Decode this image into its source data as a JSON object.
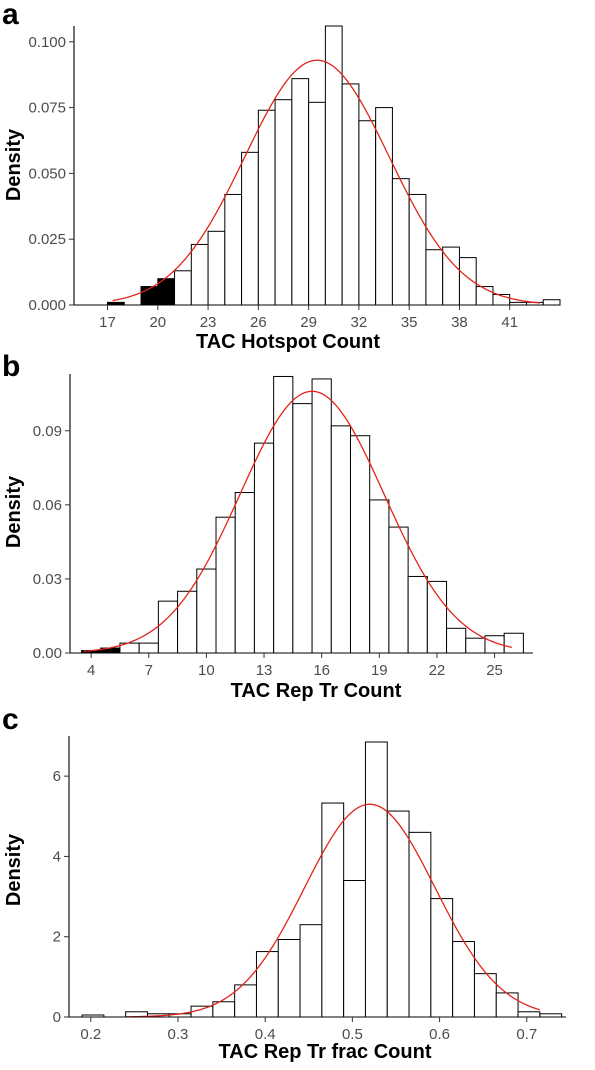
{
  "chart_data": [
    {
      "panel": "a",
      "type": "histogram",
      "xlabel": "TAC Hotspot Count",
      "ylabel": "Density",
      "xlim": [
        15,
        44
      ],
      "ylim": [
        0,
        0.106
      ],
      "xticks": [
        17,
        20,
        23,
        26,
        29,
        32,
        35,
        38,
        41
      ],
      "yticks": [
        "0.000",
        "0.025",
        "0.050",
        "0.075",
        "0.100"
      ],
      "ytick_values": [
        0,
        0.025,
        0.05,
        0.075,
        0.1
      ],
      "grid": false,
      "bins": [
        {
          "x0": 17,
          "x1": 18,
          "density": 0.001,
          "fill": "#000000"
        },
        {
          "x0": 18,
          "x1": 19,
          "density": 0.0,
          "fill": "#000000"
        },
        {
          "x0": 19,
          "x1": 20,
          "density": 0.007,
          "fill": "#000000"
        },
        {
          "x0": 20,
          "x1": 21,
          "density": 0.01,
          "fill": "#000000"
        },
        {
          "x0": 21,
          "x1": 22,
          "density": 0.013,
          "fill": "#ffffff"
        },
        {
          "x0": 22,
          "x1": 23,
          "density": 0.023,
          "fill": "#ffffff"
        },
        {
          "x0": 23,
          "x1": 24,
          "density": 0.028,
          "fill": "#ffffff"
        },
        {
          "x0": 24,
          "x1": 25,
          "density": 0.042,
          "fill": "#ffffff"
        },
        {
          "x0": 25,
          "x1": 26,
          "density": 0.058,
          "fill": "#ffffff"
        },
        {
          "x0": 26,
          "x1": 27,
          "density": 0.074,
          "fill": "#ffffff"
        },
        {
          "x0": 27,
          "x1": 28,
          "density": 0.078,
          "fill": "#ffffff"
        },
        {
          "x0": 28,
          "x1": 29,
          "density": 0.086,
          "fill": "#ffffff"
        },
        {
          "x0": 29,
          "x1": 30,
          "density": 0.077,
          "fill": "#ffffff"
        },
        {
          "x0": 30,
          "x1": 31,
          "density": 0.106,
          "fill": "#ffffff"
        },
        {
          "x0": 31,
          "x1": 32,
          "density": 0.084,
          "fill": "#ffffff"
        },
        {
          "x0": 32,
          "x1": 33,
          "density": 0.07,
          "fill": "#ffffff"
        },
        {
          "x0": 33,
          "x1": 34,
          "density": 0.075,
          "fill": "#ffffff"
        },
        {
          "x0": 34,
          "x1": 35,
          "density": 0.048,
          "fill": "#ffffff"
        },
        {
          "x0": 35,
          "x1": 36,
          "density": 0.042,
          "fill": "#ffffff"
        },
        {
          "x0": 36,
          "x1": 37,
          "density": 0.021,
          "fill": "#ffffff"
        },
        {
          "x0": 37,
          "x1": 38,
          "density": 0.022,
          "fill": "#ffffff"
        },
        {
          "x0": 38,
          "x1": 39,
          "density": 0.018,
          "fill": "#ffffff"
        },
        {
          "x0": 39,
          "x1": 40,
          "density": 0.007,
          "fill": "#ffffff"
        },
        {
          "x0": 40,
          "x1": 41,
          "density": 0.004,
          "fill": "#ffffff"
        },
        {
          "x0": 41,
          "x1": 42,
          "density": 0.001,
          "fill": "#ffffff"
        },
        {
          "x0": 42,
          "x1": 43,
          "density": 0.001,
          "fill": "#ffffff"
        },
        {
          "x0": 43,
          "x1": 44,
          "density": 0.002,
          "fill": "#ffffff"
        }
      ],
      "normal_fit": {
        "mean": 29.5,
        "sd": 4.3,
        "peak": 0.093,
        "x_range": [
          17.3,
          42.8
        ]
      },
      "curve_color": "#e3241b"
    },
    {
      "panel": "b",
      "type": "histogram",
      "xlabel": "TAC Rep Tr Count",
      "ylabel": "Density",
      "xlim": [
        2.9,
        27
      ],
      "ylim": [
        0,
        0.113
      ],
      "xticks": [
        4,
        7,
        10,
        13,
        16,
        19,
        22,
        25
      ],
      "yticks": [
        "0.00",
        "0.03",
        "0.06",
        "0.09"
      ],
      "ytick_values": [
        0,
        0.03,
        0.06,
        0.09
      ],
      "grid": false,
      "bins": [
        {
          "x0": 3.5,
          "x1": 4.5,
          "density": 0.001,
          "fill": "#000000"
        },
        {
          "x0": 4.5,
          "x1": 5.5,
          "density": 0.002,
          "fill": "#000000"
        },
        {
          "x0": 5.5,
          "x1": 6.5,
          "density": 0.004,
          "fill": "#ffffff"
        },
        {
          "x0": 6.5,
          "x1": 7.5,
          "density": 0.004,
          "fill": "#ffffff"
        },
        {
          "x0": 7.5,
          "x1": 8.5,
          "density": 0.021,
          "fill": "#ffffff"
        },
        {
          "x0": 8.5,
          "x1": 9.5,
          "density": 0.025,
          "fill": "#ffffff"
        },
        {
          "x0": 9.5,
          "x1": 10.5,
          "density": 0.034,
          "fill": "#ffffff"
        },
        {
          "x0": 10.5,
          "x1": 11.5,
          "density": 0.055,
          "fill": "#ffffff"
        },
        {
          "x0": 11.5,
          "x1": 12.5,
          "density": 0.065,
          "fill": "#ffffff"
        },
        {
          "x0": 12.5,
          "x1": 13.5,
          "density": 0.085,
          "fill": "#ffffff"
        },
        {
          "x0": 13.5,
          "x1": 14.5,
          "density": 0.112,
          "fill": "#ffffff"
        },
        {
          "x0": 14.5,
          "x1": 15.5,
          "density": 0.101,
          "fill": "#ffffff"
        },
        {
          "x0": 15.5,
          "x1": 16.5,
          "density": 0.111,
          "fill": "#ffffff"
        },
        {
          "x0": 16.5,
          "x1": 17.5,
          "density": 0.092,
          "fill": "#ffffff"
        },
        {
          "x0": 17.5,
          "x1": 18.5,
          "density": 0.088,
          "fill": "#ffffff"
        },
        {
          "x0": 18.5,
          "x1": 19.5,
          "density": 0.062,
          "fill": "#ffffff"
        },
        {
          "x0": 19.5,
          "x1": 20.5,
          "density": 0.051,
          "fill": "#ffffff"
        },
        {
          "x0": 20.5,
          "x1": 21.5,
          "density": 0.031,
          "fill": "#ffffff"
        },
        {
          "x0": 21.5,
          "x1": 22.5,
          "density": 0.029,
          "fill": "#ffffff"
        },
        {
          "x0": 22.5,
          "x1": 23.5,
          "density": 0.01,
          "fill": "#ffffff"
        },
        {
          "x0": 23.5,
          "x1": 24.5,
          "density": 0.006,
          "fill": "#ffffff"
        },
        {
          "x0": 24.5,
          "x1": 25.5,
          "density": 0.007,
          "fill": "#ffffff"
        },
        {
          "x0": 25.5,
          "x1": 26.5,
          "density": 0.008,
          "fill": "#ffffff"
        }
      ],
      "normal_fit": {
        "mean": 15.5,
        "sd": 3.75,
        "peak": 0.106,
        "x_range": [
          3.6,
          25.9
        ]
      },
      "curve_color": "#e3241b"
    },
    {
      "panel": "c",
      "type": "histogram",
      "xlabel": "TAC Rep Tr frac Count",
      "ylabel": "Density",
      "xlim": [
        0.175,
        0.745
      ],
      "ylim": [
        0,
        7.0
      ],
      "xticks": [
        "0.2",
        "0.3",
        "0.4",
        "0.5",
        "0.6",
        "0.7"
      ],
      "xtick_values": [
        0.2,
        0.3,
        0.4,
        0.5,
        0.6,
        0.7
      ],
      "yticks": [
        "0",
        "2",
        "4",
        "6"
      ],
      "ytick_values": [
        0,
        2,
        4,
        6
      ],
      "grid": false,
      "bins": [
        {
          "x0": 0.19,
          "x1": 0.215,
          "density": 0.05,
          "fill": "#ffffff"
        },
        {
          "x0": 0.215,
          "x1": 0.24,
          "density": 0.0,
          "fill": "#ffffff"
        },
        {
          "x0": 0.24,
          "x1": 0.265,
          "density": 0.13,
          "fill": "#ffffff"
        },
        {
          "x0": 0.265,
          "x1": 0.29,
          "density": 0.08,
          "fill": "#ffffff"
        },
        {
          "x0": 0.29,
          "x1": 0.315,
          "density": 0.08,
          "fill": "#ffffff"
        },
        {
          "x0": 0.315,
          "x1": 0.34,
          "density": 0.27,
          "fill": "#ffffff"
        },
        {
          "x0": 0.34,
          "x1": 0.365,
          "density": 0.38,
          "fill": "#ffffff"
        },
        {
          "x0": 0.365,
          "x1": 0.39,
          "density": 0.8,
          "fill": "#ffffff"
        },
        {
          "x0": 0.39,
          "x1": 0.415,
          "density": 1.63,
          "fill": "#ffffff"
        },
        {
          "x0": 0.415,
          "x1": 0.44,
          "density": 1.93,
          "fill": "#ffffff"
        },
        {
          "x0": 0.44,
          "x1": 0.465,
          "density": 2.3,
          "fill": "#ffffff"
        },
        {
          "x0": 0.465,
          "x1": 0.49,
          "density": 5.33,
          "fill": "#ffffff"
        },
        {
          "x0": 0.49,
          "x1": 0.515,
          "density": 3.4,
          "fill": "#ffffff"
        },
        {
          "x0": 0.515,
          "x1": 0.54,
          "density": 6.85,
          "fill": "#ffffff"
        },
        {
          "x0": 0.54,
          "x1": 0.565,
          "density": 5.13,
          "fill": "#ffffff"
        },
        {
          "x0": 0.565,
          "x1": 0.59,
          "density": 4.6,
          "fill": "#ffffff"
        },
        {
          "x0": 0.59,
          "x1": 0.615,
          "density": 2.95,
          "fill": "#ffffff"
        },
        {
          "x0": 0.615,
          "x1": 0.64,
          "density": 1.88,
          "fill": "#ffffff"
        },
        {
          "x0": 0.64,
          "x1": 0.665,
          "density": 1.08,
          "fill": "#ffffff"
        },
        {
          "x0": 0.665,
          "x1": 0.69,
          "density": 0.6,
          "fill": "#ffffff"
        },
        {
          "x0": 0.69,
          "x1": 0.715,
          "density": 0.13,
          "fill": "#ffffff"
        },
        {
          "x0": 0.715,
          "x1": 0.74,
          "density": 0.08,
          "fill": "#ffffff"
        }
      ],
      "normal_fit": {
        "mean": 0.52,
        "sd": 0.075,
        "peak": 5.3,
        "x_range": [
          0.24,
          0.715
        ]
      },
      "curve_color": "#e3241b"
    }
  ]
}
